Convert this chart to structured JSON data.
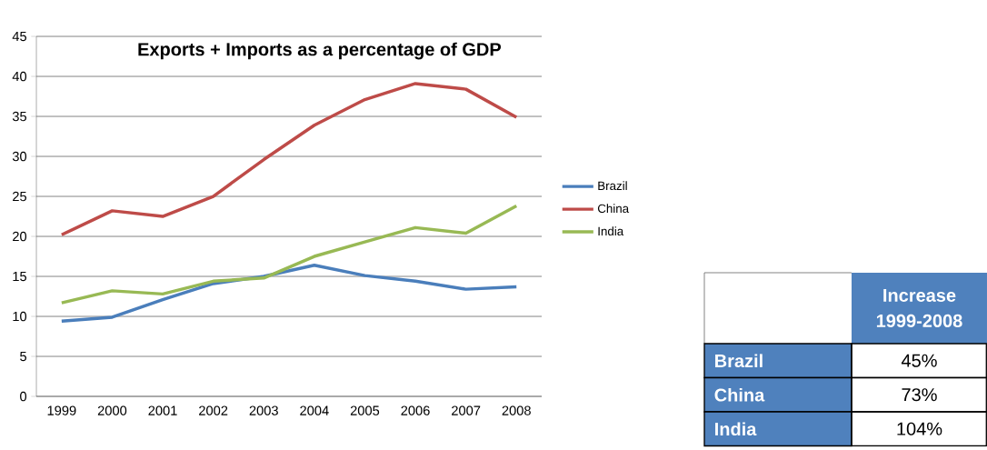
{
  "chart_data": [
    {
      "type": "line",
      "title": "Exports + Imports as a percentage of GDP",
      "categories": [
        "1999",
        "2000",
        "2001",
        "2002",
        "2003",
        "2004",
        "2005",
        "2006",
        "2007",
        "2008"
      ],
      "series": [
        {
          "name": "Brazil",
          "color": "#4a7ebb",
          "values": [
            9.4,
            9.9,
            12.1,
            14.1,
            15.0,
            16.4,
            15.1,
            14.4,
            13.4,
            13.7
          ]
        },
        {
          "name": "China",
          "color": "#be4b48",
          "values": [
            20.2,
            23.2,
            22.5,
            25.0,
            29.6,
            33.9,
            37.1,
            39.1,
            38.4,
            34.9
          ]
        },
        {
          "name": "India",
          "color": "#98b954",
          "values": [
            11.7,
            13.2,
            12.8,
            14.4,
            14.8,
            17.5,
            19.3,
            21.1,
            20.4,
            23.8
          ]
        }
      ],
      "ylim": [
        0,
        45
      ],
      "yticks": [
        0,
        5,
        10,
        15,
        20,
        25,
        30,
        35,
        40,
        45
      ],
      "grid": "y",
      "legend": "right",
      "marker": "none",
      "line_style": "solid"
    },
    {
      "type": "other",
      "title": "Increase 1999-2008",
      "categories": [
        "Brazil",
        "China",
        "India"
      ],
      "value_labels": [
        "45%",
        "73%",
        "104%"
      ]
    }
  ]
}
